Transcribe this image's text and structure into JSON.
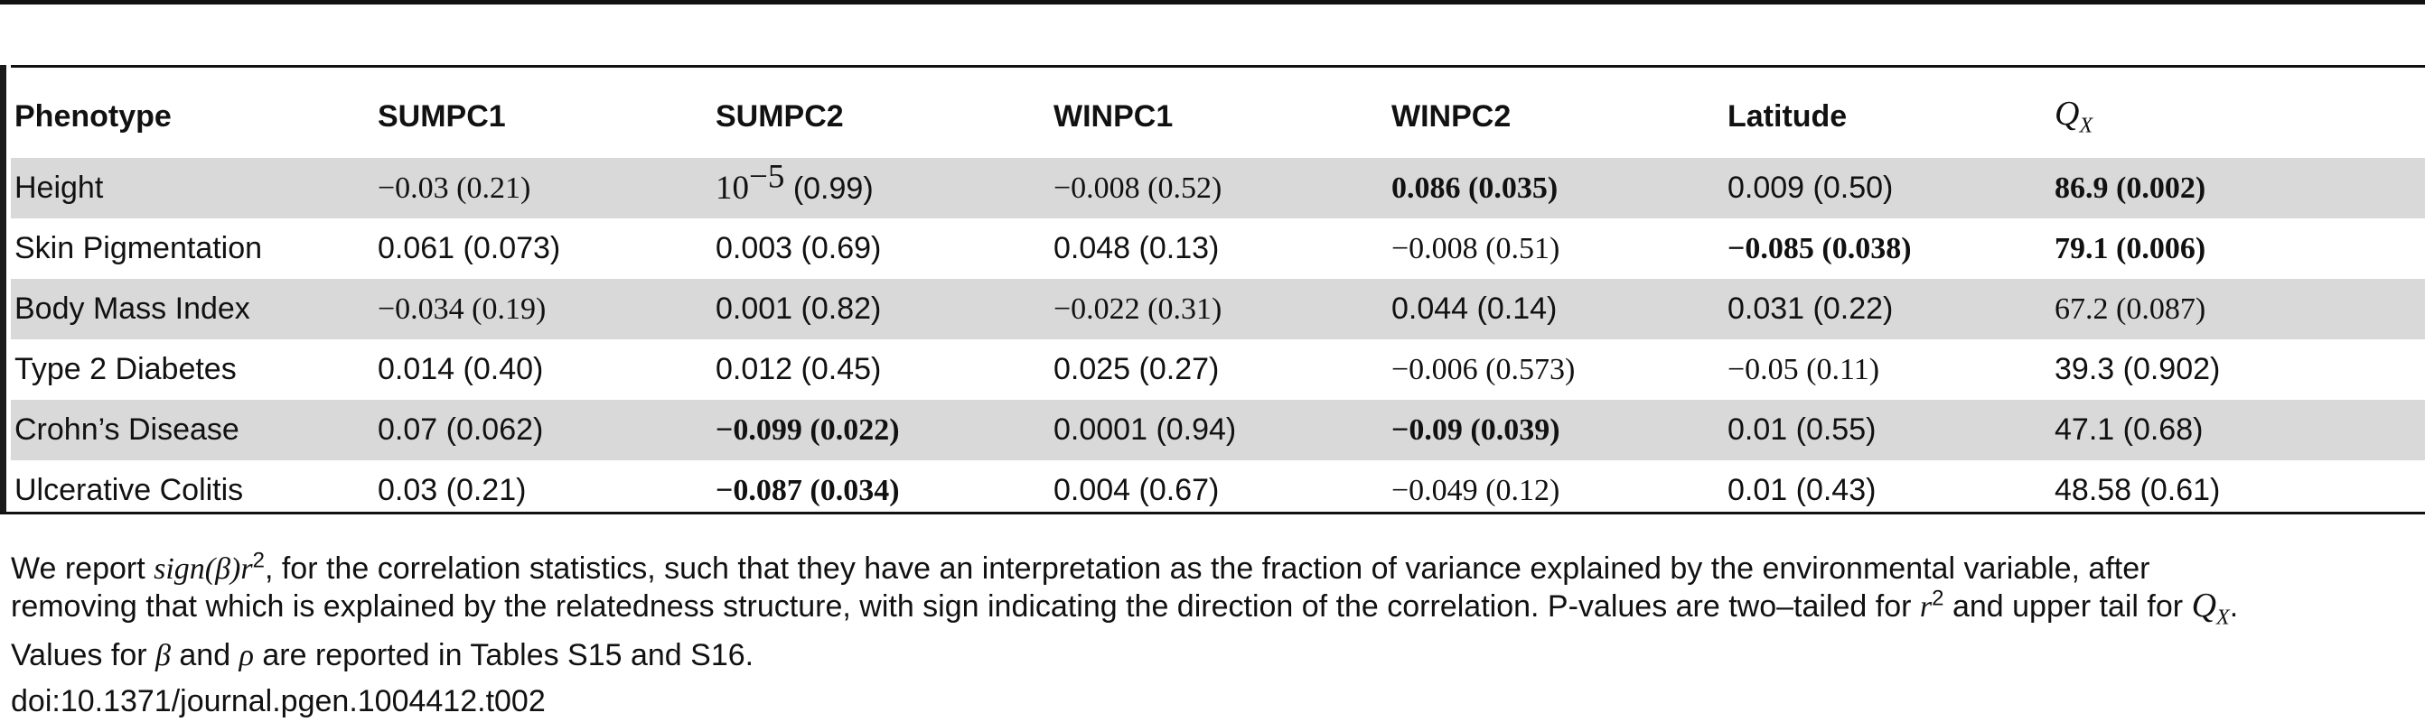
{
  "table": {
    "headers": [
      "Phenotype",
      "SUMPC1",
      "SUMPC2",
      "WINPC1",
      "WINPC2",
      "Latitude",
      "Q_X"
    ],
    "header_qx": {
      "letter": "Q",
      "subscript": "X"
    },
    "rows": [
      {
        "phenotype": "Height",
        "sumpc1": "−0.03 (0.21)",
        "sumpc2_base": "10",
        "sumpc2_exp": "−5",
        "sumpc2_p": "(0.99)",
        "winpc1": "−0.008 (0.52)",
        "winpc2": "0.086 (0.035)",
        "latitude": "0.009 (0.50)",
        "qx": "86.9 (0.002)"
      },
      {
        "phenotype": "Skin Pigmentation",
        "sumpc1": "0.061 (0.073)",
        "sumpc2": "0.003 (0.69)",
        "winpc1": "0.048 (0.13)",
        "winpc2": "−0.008 (0.51)",
        "latitude": "−0.085 (0.038)",
        "qx": "79.1 (0.006)"
      },
      {
        "phenotype": "Body Mass Index",
        "sumpc1": "−0.034 (0.19)",
        "sumpc2": "0.001 (0.82)",
        "winpc1": "−0.022 (0.31)",
        "winpc2": "0.044 (0.14)",
        "latitude": "0.031 (0.22)",
        "qx": "67.2 (0.087)"
      },
      {
        "phenotype": "Type 2 Diabetes",
        "sumpc1": "0.014 (0.40)",
        "sumpc2": "0.012 (0.45)",
        "winpc1": "0.025 (0.27)",
        "winpc2": "−0.006 (0.573)",
        "latitude": "−0.05 (0.11)",
        "qx": "39.3 (0.902)"
      },
      {
        "phenotype": "Crohn’s Disease",
        "sumpc1": "0.07 (0.062)",
        "sumpc2": "−0.099 (0.022)",
        "winpc1": "0.0001 (0.94)",
        "winpc2": "−0.09 (0.039)",
        "latitude": "0.01 (0.55)",
        "qx": "47.1 (0.68)"
      },
      {
        "phenotype": "Ulcerative Colitis",
        "sumpc1": "0.03 (0.21)",
        "sumpc2": "−0.087 (0.034)",
        "winpc1": "0.004 (0.67)",
        "winpc2": "−0.049 (0.12)",
        "latitude": "0.01 (0.43)",
        "qx": "48.58 (0.61)"
      }
    ]
  },
  "footnote": {
    "l1_a": "We report ",
    "l1_sign": "sign",
    "l1_beta": "(β)",
    "l1_r": "r",
    "l1_sq": "2",
    "l1_b": ", for the correlation statistics, such that they have an interpretation as the fraction of variance explained by the environmental variable, after",
    "l2": "removing that which is explained by the relatedness structure, with sign indicating the direction of the correlation. P-values are two–tailed for ",
    "l2_r": "r",
    "l2_sq": "2",
    "l2_mid": " and upper tail for ",
    "l2_q": "Q",
    "l2_x": "X",
    "l2_end": ".",
    "l3_a": "Values for ",
    "l3_beta": "β",
    "l3_and": " and ",
    "l3_rho": "ρ",
    "l3_b": " are reported in Tables S15 and S16."
  },
  "doi": "doi:10.1371/journal.pgen.1004412.t002"
}
